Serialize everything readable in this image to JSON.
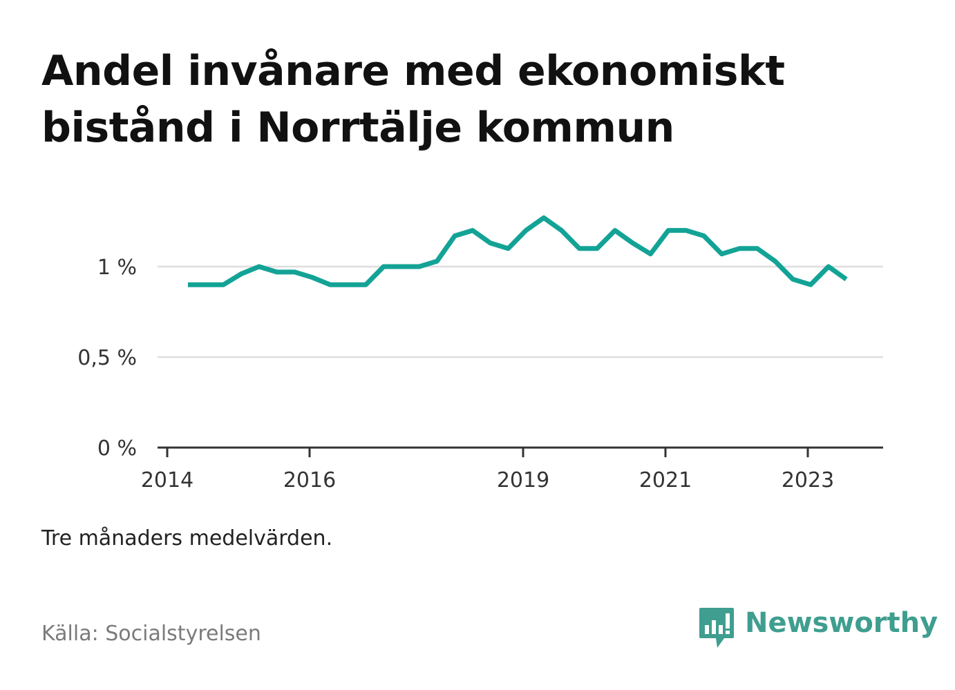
{
  "title": "Andel invånare med ekonomiskt bistånd i Norrtälje kommun",
  "note": "Tre månaders medelvärden.",
  "source": "Källa: Socialstyrelsen",
  "brand": {
    "name": "Newsworthy",
    "icon": "newsworthy-logo-icon",
    "color": "#3f9e8f"
  },
  "colors": {
    "line": "#13a396",
    "grid": "#dddddd",
    "axis": "#333333"
  },
  "chart_data": {
    "type": "line",
    "title": "Andel invånare med ekonomiskt bistånd i Norrtälje kommun",
    "xlabel": "",
    "ylabel": "",
    "ylim": [
      0,
      1.3
    ],
    "xlim": [
      2014.0,
      2024.25
    ],
    "yticks": [
      {
        "value": 0,
        "label": "0 %"
      },
      {
        "value": 0.5,
        "label": "0,5 %"
      },
      {
        "value": 1,
        "label": "1 %"
      }
    ],
    "xticks": [
      {
        "value": 2014,
        "label": "2014"
      },
      {
        "value": 2016,
        "label": "2016"
      },
      {
        "value": 2019,
        "label": "2019"
      },
      {
        "value": 2021,
        "label": "2021"
      },
      {
        "value": 2023,
        "label": "2023"
      }
    ],
    "grid": true,
    "series": [
      {
        "x": [
          2014.29,
          2014.54,
          2014.79,
          2015.04,
          2015.29,
          2015.54,
          2015.79,
          2016.04,
          2016.29,
          2016.54,
          2016.79,
          2017.04,
          2017.29,
          2017.54,
          2017.79,
          2018.04,
          2018.29,
          2018.54,
          2018.79,
          2019.04,
          2019.29,
          2019.54,
          2019.79,
          2020.04,
          2020.29,
          2020.54,
          2020.79,
          2021.04,
          2021.29,
          2021.54,
          2021.79,
          2022.04,
          2022.29,
          2022.54,
          2022.79,
          2023.04,
          2023.29,
          2023.54
        ],
        "y": [
          0.9,
          0.9,
          0.9,
          0.96,
          1.0,
          0.97,
          0.97,
          0.94,
          0.9,
          0.9,
          0.9,
          1.0,
          1.0,
          1.0,
          1.03,
          1.17,
          1.2,
          1.13,
          1.1,
          1.2,
          1.27,
          1.2,
          1.1,
          1.1,
          1.2,
          1.13,
          1.07,
          1.2,
          1.2,
          1.17,
          1.07,
          1.1,
          1.1,
          1.03,
          0.93,
          0.9,
          1.0,
          0.93
        ]
      }
    ]
  }
}
